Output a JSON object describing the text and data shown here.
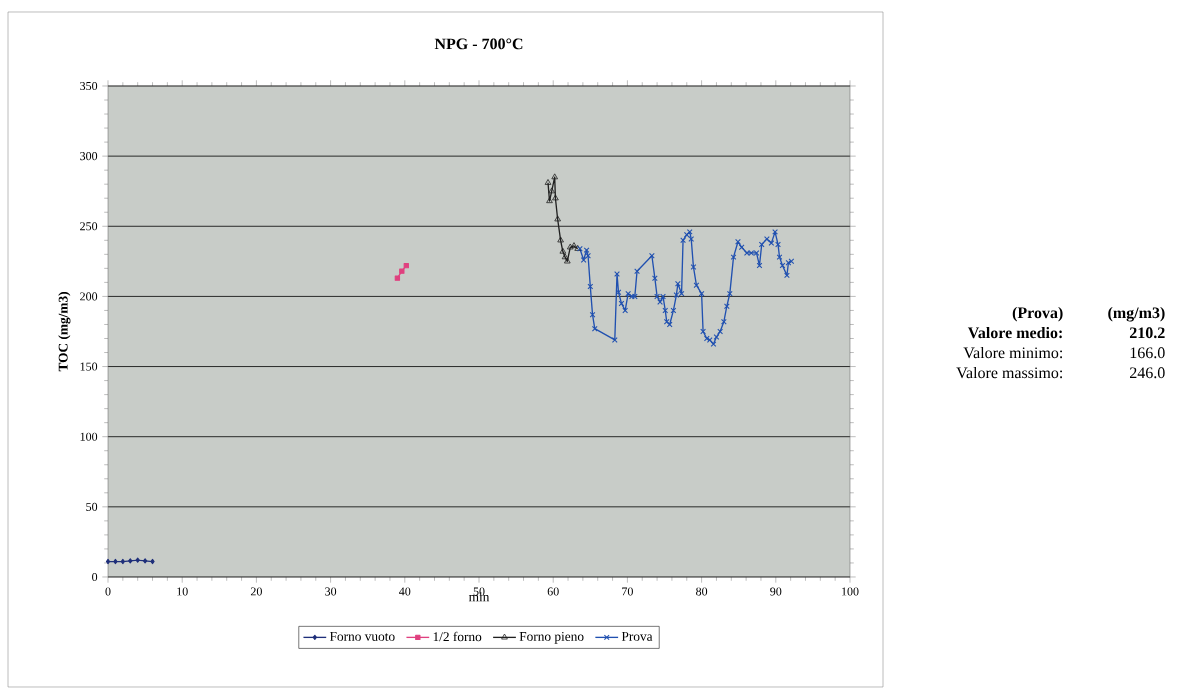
{
  "chart_data": {
    "type": "line",
    "title": "NPG - 700°C",
    "xlabel": "min",
    "ylabel": "TOC (mg/m3)",
    "xlim": [
      0,
      100
    ],
    "xticks": [
      0,
      10,
      20,
      30,
      40,
      50,
      60,
      70,
      80,
      90,
      100
    ],
    "ylim": [
      0,
      350
    ],
    "yticks": [
      0,
      50,
      100,
      150,
      200,
      250,
      300,
      350
    ],
    "grid": "y",
    "legend": "bottom",
    "line_style": "solid",
    "annotations": [
      "(Prova)",
      "(mg/m3)",
      "Valore medio:",
      "210.2",
      "Valore minimo:",
      "166.0",
      "Valore massimo:",
      "246.0"
    ],
    "series": [
      {
        "name": "Forno vuoto",
        "color": "#1f2f7a",
        "marker": "diamond",
        "x": [
          0,
          1,
          2,
          3,
          4,
          5,
          6
        ],
        "values": [
          11,
          11,
          11,
          11.5,
          12,
          11.5,
          11
        ]
      },
      {
        "name": "1/2 forno",
        "color": "#e0407f",
        "marker": "square",
        "x": [
          39.0,
          39.6,
          40.2
        ],
        "values": [
          213,
          218,
          222
        ]
      },
      {
        "name": "Forno pieno",
        "color": "#202020",
        "marker": "triangle",
        "x": [
          59.3,
          59.5,
          59.8,
          60.2,
          60.3,
          60.6,
          61.0,
          61.3,
          61.6,
          61.9,
          62.3,
          62.8,
          63.3
        ],
        "values": [
          281,
          268,
          275,
          285,
          270,
          255,
          240,
          232,
          228,
          225,
          235,
          236,
          234
        ]
      },
      {
        "name": "Prova",
        "color": "#2050b0",
        "marker": "cross",
        "x": [
          63.6,
          64.1,
          64.5,
          64.7,
          65.0,
          65.3,
          65.6,
          68.3,
          68.6,
          68.8,
          69.2,
          69.7,
          70.1,
          70.6,
          71.0,
          71.3,
          73.3,
          73.7,
          74.0,
          74.4,
          74.8,
          75.1,
          75.3,
          75.7,
          76.2,
          76.6,
          76.8,
          77.3,
          77.5,
          78.0,
          78.4,
          78.6,
          78.9,
          79.3,
          80.0,
          80.2,
          80.7,
          81.1,
          81.6,
          82.0,
          82.5,
          83.0,
          83.4,
          83.8,
          84.3,
          84.9,
          85.4,
          86.1,
          86.7,
          87.4,
          87.8,
          88.1,
          88.8,
          89.4,
          89.9,
          90.3,
          90.5,
          90.9,
          91.5,
          91.7,
          92.1
        ],
        "values": [
          234,
          226,
          233,
          229,
          207,
          187,
          177,
          169,
          216,
          203,
          195,
          190,
          202,
          200,
          200,
          218,
          229,
          213,
          200,
          196,
          200,
          190,
          182,
          180,
          190,
          201,
          209,
          202,
          240,
          244,
          246,
          241,
          221,
          208,
          202,
          175,
          170,
          169,
          166,
          171,
          175,
          182,
          193,
          202,
          228,
          239,
          235,
          231,
          231,
          231,
          222,
          237,
          241,
          238,
          246,
          237,
          228,
          222,
          215,
          224,
          225
        ]
      }
    ]
  }
}
